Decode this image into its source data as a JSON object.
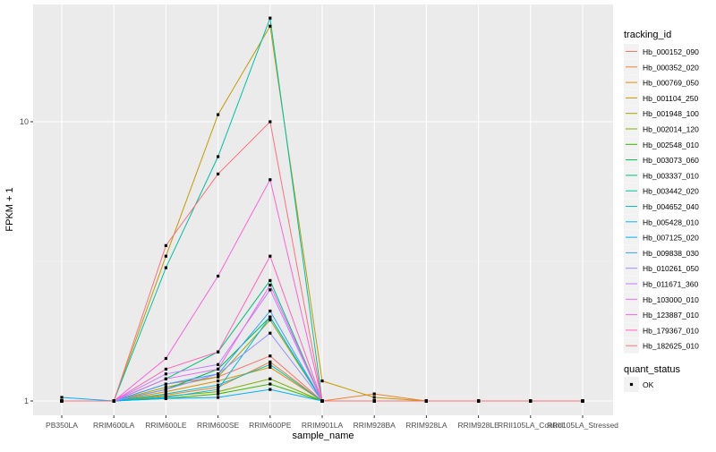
{
  "chart_data": {
    "type": "line",
    "xlabel": "sample_name",
    "ylabel": "FPKM + 1",
    "y_scale": "log10",
    "y_ticks": [
      1,
      10
    ],
    "y_tick_labels": [
      "1",
      "10"
    ],
    "grid": true,
    "legend_position": "right",
    "categories": [
      "PB350LA",
      "RRIM600LA",
      "RRIM600LE",
      "RRIM600SE",
      "RRIM600PE",
      "RRIM901LA",
      "RRIM928BA",
      "RRIM928LA",
      "RRIM928LE",
      "RRII105LA_Control",
      "RRII105LA_Stressed"
    ],
    "legend": {
      "title": "tracking_id",
      "entries": [
        "Hb_000152_090",
        "Hb_000352_020",
        "Hb_000769_050",
        "Hb_001104_250",
        "Hb_001948_100",
        "Hb_002014_120",
        "Hb_002548_010",
        "Hb_003073_060",
        "Hb_003337_010",
        "Hb_003442_020",
        "Hb_004652_040",
        "Hb_005428_010",
        "Hb_007125_020",
        "Hb_009838_030",
        "Hb_010261_050",
        "Hb_011671_360",
        "Hb_103000_010",
        "Hb_123887_010",
        "Hb_179367_010",
        "Hb_182625_010"
      ]
    },
    "shape_legend": {
      "title": "quant_status",
      "entries": [
        "OK"
      ]
    },
    "series": [
      {
        "name": "Hb_000152_090",
        "color": "#F8766D",
        "values": [
          1,
          1,
          1.15,
          1.22,
          1.45,
          1,
          1,
          1,
          1,
          1,
          1
        ]
      },
      {
        "name": "Hb_000352_020",
        "color": "#EA8331",
        "values": [
          1,
          1,
          1.05,
          1.12,
          1.38,
          1,
          1.06,
          1,
          1,
          1,
          1
        ]
      },
      {
        "name": "Hb_000769_050",
        "color": "#D89000",
        "values": [
          1,
          1,
          1.08,
          1.18,
          1.32,
          1,
          1,
          1,
          1,
          1,
          1
        ]
      },
      {
        "name": "Hb_001104_250",
        "color": "#C09B00",
        "values": [
          1,
          1,
          3.3,
          10.6,
          22.0,
          1.18,
          1.03,
          1,
          1,
          1,
          1
        ]
      },
      {
        "name": "Hb_001948_100",
        "color": "#A3A500",
        "values": [
          1,
          1,
          1.12,
          1.22,
          1.95,
          1,
          1,
          1,
          1,
          1,
          1
        ]
      },
      {
        "name": "Hb_002014_120",
        "color": "#7CAE00",
        "values": [
          1,
          1,
          1.04,
          1.08,
          1.2,
          1,
          1,
          1,
          1,
          1,
          1
        ]
      },
      {
        "name": "Hb_002548_010",
        "color": "#39B600",
        "values": [
          1,
          1,
          1.02,
          1.06,
          1.15,
          1,
          1,
          1,
          1,
          1,
          1
        ]
      },
      {
        "name": "Hb_003073_060",
        "color": "#00BB4E",
        "values": [
          1,
          1,
          1.1,
          1.3,
          2.0,
          1,
          1,
          1,
          1,
          1,
          1
        ]
      },
      {
        "name": "Hb_003337_010",
        "color": "#00BF7D",
        "values": [
          1,
          1,
          1.2,
          1.5,
          2.7,
          1,
          1,
          1,
          1,
          1,
          1
        ]
      },
      {
        "name": "Hb_003442_020",
        "color": "#00C1A3",
        "values": [
          1,
          1,
          3.0,
          7.5,
          23.5,
          1,
          1,
          1,
          1,
          1,
          1
        ]
      },
      {
        "name": "Hb_004652_040",
        "color": "#00BFC4",
        "values": [
          1,
          1,
          1.06,
          1.14,
          1.35,
          1,
          1,
          1,
          1,
          1,
          1
        ]
      },
      {
        "name": "Hb_005428_010",
        "color": "#00BAE0",
        "values": [
          1,
          1,
          1.03,
          1.1,
          2.0,
          1,
          1,
          1,
          1,
          1,
          1
        ]
      },
      {
        "name": "Hb_007125_020",
        "color": "#00B0F6",
        "values": [
          1.03,
          1,
          1.02,
          1.03,
          1.1,
          1,
          1,
          1,
          1,
          1,
          1
        ]
      },
      {
        "name": "Hb_009838_030",
        "color": "#35A2FF",
        "values": [
          1,
          1,
          1.15,
          1.25,
          2.1,
          1,
          1,
          1,
          1,
          1,
          1
        ]
      },
      {
        "name": "Hb_010261_050",
        "color": "#9590FF",
        "values": [
          1,
          1,
          1.1,
          1.25,
          1.75,
          1,
          1,
          1,
          1,
          1,
          1
        ]
      },
      {
        "name": "Hb_011671_360",
        "color": "#C77CFF",
        "values": [
          1,
          1,
          1.25,
          1.35,
          2.5,
          1,
          1,
          1,
          1,
          1,
          1
        ]
      },
      {
        "name": "Hb_103000_010",
        "color": "#E76BF3",
        "values": [
          1,
          1,
          1.2,
          1.3,
          2.6,
          1,
          1,
          1,
          1,
          1,
          1
        ]
      },
      {
        "name": "Hb_123887_010",
        "color": "#FA62DB",
        "values": [
          1,
          1,
          1.42,
          2.8,
          6.2,
          1,
          1,
          1,
          1,
          1,
          1
        ]
      },
      {
        "name": "Hb_179367_010",
        "color": "#FF62BC",
        "values": [
          1,
          1,
          1.3,
          1.5,
          3.3,
          1,
          1,
          1,
          1,
          1,
          1
        ]
      },
      {
        "name": "Hb_182625_010",
        "color": "#FC717F",
        "values": [
          1,
          1,
          3.6,
          6.5,
          10.0,
          1,
          1,
          1,
          1,
          1,
          1
        ]
      }
    ]
  }
}
